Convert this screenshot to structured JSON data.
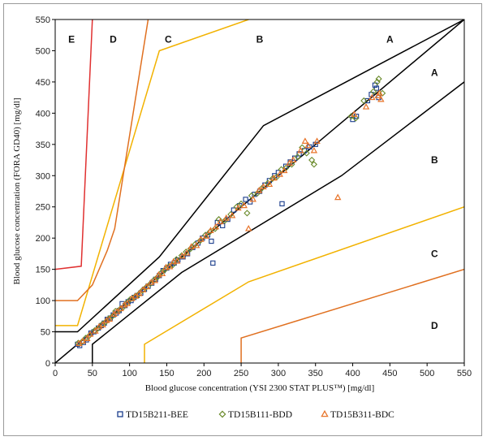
{
  "chart_data": {
    "type": "scatter",
    "xlabel": "Blood glucose concentration (YSI 2300 STAT PLUS™) [mg/dl]",
    "ylabel": "Blood glucose concentration (FORA GD40) [mg/dl]",
    "xlim": [
      0,
      550
    ],
    "ylim": [
      0,
      550
    ],
    "x_ticks": [
      0,
      50,
      100,
      150,
      200,
      250,
      300,
      350,
      400,
      450,
      500,
      550
    ],
    "y_ticks": [
      0,
      50,
      100,
      150,
      200,
      250,
      300,
      350,
      400,
      450,
      500,
      550
    ],
    "grid": false,
    "legend_position": "bottom",
    "zone_lines": [
      {
        "color": "#000000",
        "points": [
          [
            0,
            0
          ],
          [
            550,
            550
          ]
        ]
      },
      {
        "color": "#000000",
        "points": [
          [
            0,
            50
          ],
          [
            30,
            50
          ],
          [
            140,
            170
          ],
          [
            280,
            380
          ],
          [
            550,
            550
          ]
        ]
      },
      {
        "color": "#000000",
        "points": [
          [
            50,
            0
          ],
          [
            50,
            30
          ],
          [
            170,
            145
          ],
          [
            385,
            300
          ],
          [
            550,
            450
          ]
        ]
      },
      {
        "color": "#f2b200",
        "points": [
          [
            0,
            60
          ],
          [
            30,
            60
          ],
          [
            140,
            500
          ],
          [
            260,
            550
          ]
        ]
      },
      {
        "color": "#f2b200",
        "points": [
          [
            120,
            0
          ],
          [
            120,
            30
          ],
          [
            260,
            130
          ],
          [
            550,
            250
          ]
        ]
      },
      {
        "color": "#e07020",
        "points": [
          [
            0,
            100
          ],
          [
            30,
            100
          ],
          [
            50,
            125
          ],
          [
            70,
            180
          ],
          [
            80,
            215
          ],
          [
            125,
            550
          ]
        ]
      },
      {
        "color": "#e07020",
        "points": [
          [
            250,
            0
          ],
          [
            250,
            40
          ],
          [
            550,
            150
          ]
        ]
      },
      {
        "color": "#e03030",
        "points": [
          [
            0,
            150
          ],
          [
            35,
            155
          ],
          [
            50,
            550
          ]
        ]
      }
    ],
    "zone_labels": [
      {
        "text": "E",
        "x": 22,
        "y": 518
      },
      {
        "text": "D",
        "x": 78,
        "y": 518
      },
      {
        "text": "C",
        "x": 152,
        "y": 518
      },
      {
        "text": "B",
        "x": 275,
        "y": 518
      },
      {
        "text": "A",
        "x": 450,
        "y": 518
      },
      {
        "text": "A",
        "x": 510,
        "y": 465
      },
      {
        "text": "B",
        "x": 510,
        "y": 325
      },
      {
        "text": "C",
        "x": 510,
        "y": 175
      },
      {
        "text": "D",
        "x": 510,
        "y": 60
      }
    ],
    "series": [
      {
        "name": "TD15B211-BEE",
        "color": "#1a3d8c",
        "marker": "square",
        "points": [
          [
            30,
            30
          ],
          [
            33,
            28
          ],
          [
            38,
            33
          ],
          [
            42,
            37
          ],
          [
            48,
            48
          ],
          [
            52,
            50
          ],
          [
            58,
            56
          ],
          [
            62,
            60
          ],
          [
            66,
            64
          ],
          [
            70,
            70
          ],
          [
            74,
            72
          ],
          [
            78,
            77
          ],
          [
            82,
            80
          ],
          [
            86,
            84
          ],
          [
            90,
            95
          ],
          [
            94,
            92
          ],
          [
            98,
            98
          ],
          [
            102,
            100
          ],
          [
            106,
            105
          ],
          [
            110,
            108
          ],
          [
            115,
            112
          ],
          [
            120,
            118
          ],
          [
            125,
            123
          ],
          [
            130,
            128
          ],
          [
            135,
            134
          ],
          [
            140,
            140
          ],
          [
            145,
            148
          ],
          [
            150,
            152
          ],
          [
            155,
            158
          ],
          [
            160,
            160
          ],
          [
            165,
            165
          ],
          [
            172,
            170
          ],
          [
            178,
            175
          ],
          [
            185,
            185
          ],
          [
            192,
            192
          ],
          [
            198,
            200
          ],
          [
            205,
            205
          ],
          [
            210,
            195
          ],
          [
            212,
            160
          ],
          [
            218,
            225
          ],
          [
            225,
            220
          ],
          [
            232,
            230
          ],
          [
            240,
            245
          ],
          [
            248,
            252
          ],
          [
            256,
            262
          ],
          [
            262,
            258
          ],
          [
            268,
            270
          ],
          [
            275,
            275
          ],
          [
            282,
            285
          ],
          [
            288,
            292
          ],
          [
            295,
            300
          ],
          [
            300,
            305
          ],
          [
            305,
            255
          ],
          [
            310,
            315
          ],
          [
            316,
            322
          ],
          [
            322,
            328
          ],
          [
            328,
            335
          ],
          [
            335,
            340
          ],
          [
            342,
            346
          ],
          [
            350,
            350
          ],
          [
            400,
            390
          ],
          [
            405,
            395
          ],
          [
            420,
            420
          ],
          [
            425,
            430
          ],
          [
            430,
            445
          ],
          [
            432,
            440
          ],
          [
            435,
            425
          ]
        ]
      },
      {
        "name": "TD15B111-BDD",
        "color": "#6a8a2a",
        "marker": "diamond",
        "points": [
          [
            31,
            32
          ],
          [
            36,
            34
          ],
          [
            41,
            40
          ],
          [
            46,
            44
          ],
          [
            53,
            52
          ],
          [
            57,
            55
          ],
          [
            63,
            62
          ],
          [
            68,
            66
          ],
          [
            72,
            71
          ],
          [
            77,
            75
          ],
          [
            81,
            83
          ],
          [
            87,
            86
          ],
          [
            92,
            90
          ],
          [
            96,
            96
          ],
          [
            101,
            102
          ],
          [
            107,
            106
          ],
          [
            112,
            110
          ],
          [
            117,
            116
          ],
          [
            122,
            121
          ],
          [
            128,
            127
          ],
          [
            133,
            133
          ],
          [
            138,
            138
          ],
          [
            143,
            145
          ],
          [
            148,
            150
          ],
          [
            153,
            155
          ],
          [
            158,
            157
          ],
          [
            163,
            166
          ],
          [
            170,
            172
          ],
          [
            176,
            178
          ],
          [
            182,
            183
          ],
          [
            188,
            190
          ],
          [
            195,
            196
          ],
          [
            202,
            205
          ],
          [
            208,
            210
          ],
          [
            215,
            215
          ],
          [
            220,
            230
          ],
          [
            228,
            228
          ],
          [
            236,
            238
          ],
          [
            244,
            250
          ],
          [
            250,
            255
          ],
          [
            258,
            240
          ],
          [
            264,
            268
          ],
          [
            272,
            272
          ],
          [
            278,
            280
          ],
          [
            286,
            288
          ],
          [
            292,
            295
          ],
          [
            298,
            298
          ],
          [
            304,
            310
          ],
          [
            310,
            312
          ],
          [
            318,
            318
          ],
          [
            326,
            330
          ],
          [
            332,
            345
          ],
          [
            338,
            336
          ],
          [
            345,
            325
          ],
          [
            348,
            318
          ],
          [
            398,
            395
          ],
          [
            404,
            392
          ],
          [
            415,
            420
          ],
          [
            428,
            435
          ],
          [
            433,
            450
          ],
          [
            435,
            455
          ],
          [
            440,
            432
          ]
        ]
      },
      {
        "name": "TD15B311-BDC",
        "color": "#e8742a",
        "marker": "triangle",
        "points": [
          [
            32,
            31
          ],
          [
            37,
            35
          ],
          [
            43,
            39
          ],
          [
            47,
            46
          ],
          [
            54,
            51
          ],
          [
            59,
            58
          ],
          [
            64,
            61
          ],
          [
            69,
            68
          ],
          [
            73,
            70
          ],
          [
            79,
            78
          ],
          [
            83,
            82
          ],
          [
            88,
            87
          ],
          [
            93,
            93
          ],
          [
            97,
            95
          ],
          [
            103,
            103
          ],
          [
            108,
            107
          ],
          [
            113,
            111
          ],
          [
            118,
            117
          ],
          [
            123,
            122
          ],
          [
            129,
            129
          ],
          [
            134,
            132
          ],
          [
            139,
            141
          ],
          [
            144,
            143
          ],
          [
            149,
            153
          ],
          [
            154,
            154
          ],
          [
            159,
            162
          ],
          [
            164,
            163
          ],
          [
            171,
            171
          ],
          [
            177,
            176
          ],
          [
            183,
            186
          ],
          [
            190,
            188
          ],
          [
            196,
            198
          ],
          [
            203,
            203
          ],
          [
            209,
            212
          ],
          [
            216,
            218
          ],
          [
            222,
            226
          ],
          [
            230,
            232
          ],
          [
            238,
            236
          ],
          [
            246,
            248
          ],
          [
            254,
            252
          ],
          [
            260,
            215
          ],
          [
            266,
            262
          ],
          [
            274,
            276
          ],
          [
            280,
            282
          ],
          [
            288,
            286
          ],
          [
            294,
            296
          ],
          [
            302,
            302
          ],
          [
            308,
            308
          ],
          [
            315,
            320
          ],
          [
            320,
            325
          ],
          [
            330,
            340
          ],
          [
            336,
            355
          ],
          [
            340,
            348
          ],
          [
            348,
            340
          ],
          [
            352,
            355
          ],
          [
            380,
            265
          ],
          [
            402,
            398
          ],
          [
            418,
            410
          ],
          [
            426,
            425
          ],
          [
            434,
            428
          ],
          [
            436,
            432
          ],
          [
            438,
            422
          ]
        ]
      }
    ]
  }
}
